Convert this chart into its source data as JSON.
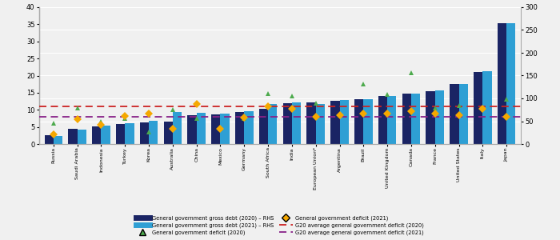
{
  "countries": [
    "Russia",
    "Saudi Arabia",
    "Indonesia",
    "Turkey",
    "Korea",
    "Australia",
    "China",
    "Mexico",
    "Germany",
    "South Africa",
    "India",
    "European Union*",
    "Argentina",
    "Brazil",
    "United Kingdom",
    "Canada",
    "France",
    "United States",
    "Italy",
    "Japan"
  ],
  "debt_2020": [
    19,
    33,
    38,
    43,
    48,
    50,
    63,
    65,
    70,
    78,
    90,
    92,
    95,
    99,
    105,
    110,
    116,
    132,
    158,
    265
  ],
  "debt_2021": [
    17,
    32,
    41,
    46,
    51,
    70,
    68,
    67,
    72,
    88,
    92,
    88,
    96,
    98,
    106,
    110,
    118,
    132,
    160,
    265
  ],
  "deficit_2020": [
    6.0,
    10.5,
    6.5,
    7.5,
    3.5,
    10.0,
    7.5,
    4.5,
    7.5,
    14.8,
    14.0,
    12.0,
    8.5,
    17.5,
    14.5,
    20.8,
    10.5,
    11.2,
    10.5,
    13.0
  ],
  "deficit_2021": [
    2.8,
    7.2,
    5.5,
    8.3,
    9.0,
    4.5,
    11.8,
    4.5,
    7.8,
    11.0,
    10.3,
    8.0,
    8.5,
    9.0,
    9.0,
    9.5,
    9.0,
    8.5,
    10.2,
    8.0
  ],
  "g20_avg_deficit_2020": 11.0,
  "g20_avg_deficit_2021": 8.0,
  "bar_color_2020": "#1a2464",
  "bar_color_2021": "#2e9fd4",
  "triangle_color": "#4daa4d",
  "diamond_color": "#f5a800",
  "line_color_2020": "#cc2222",
  "line_color_2021": "#882288",
  "ylim_left": [
    0,
    40
  ],
  "ylim_right": [
    0,
    300
  ],
  "yticks_left": [
    0,
    5,
    10,
    15,
    20,
    25,
    30,
    35,
    40
  ],
  "yticks_right": [
    0,
    50,
    100,
    150,
    200,
    250,
    300
  ],
  "bar_width": 0.38,
  "background_color": "#f0f0f0",
  "legend_items": [
    {
      "label": "General government gross debt (2020) – RHS",
      "type": "bar",
      "color": "#1a2464"
    },
    {
      "label": "General government gross debt (2021) – RHS",
      "type": "bar",
      "color": "#2e9fd4"
    },
    {
      "label": "General government deficit (2020)",
      "type": "triangle",
      "color": "#4daa4d"
    },
    {
      "label": "General government deficit (2021)",
      "type": "diamond",
      "color": "#f5a800"
    },
    {
      "label": "G20 average general government deficit (2020)",
      "type": "dashed",
      "color": "#cc2222"
    },
    {
      "label": "G20 average general government deficit (2021)",
      "type": "dashed",
      "color": "#882288"
    }
  ]
}
